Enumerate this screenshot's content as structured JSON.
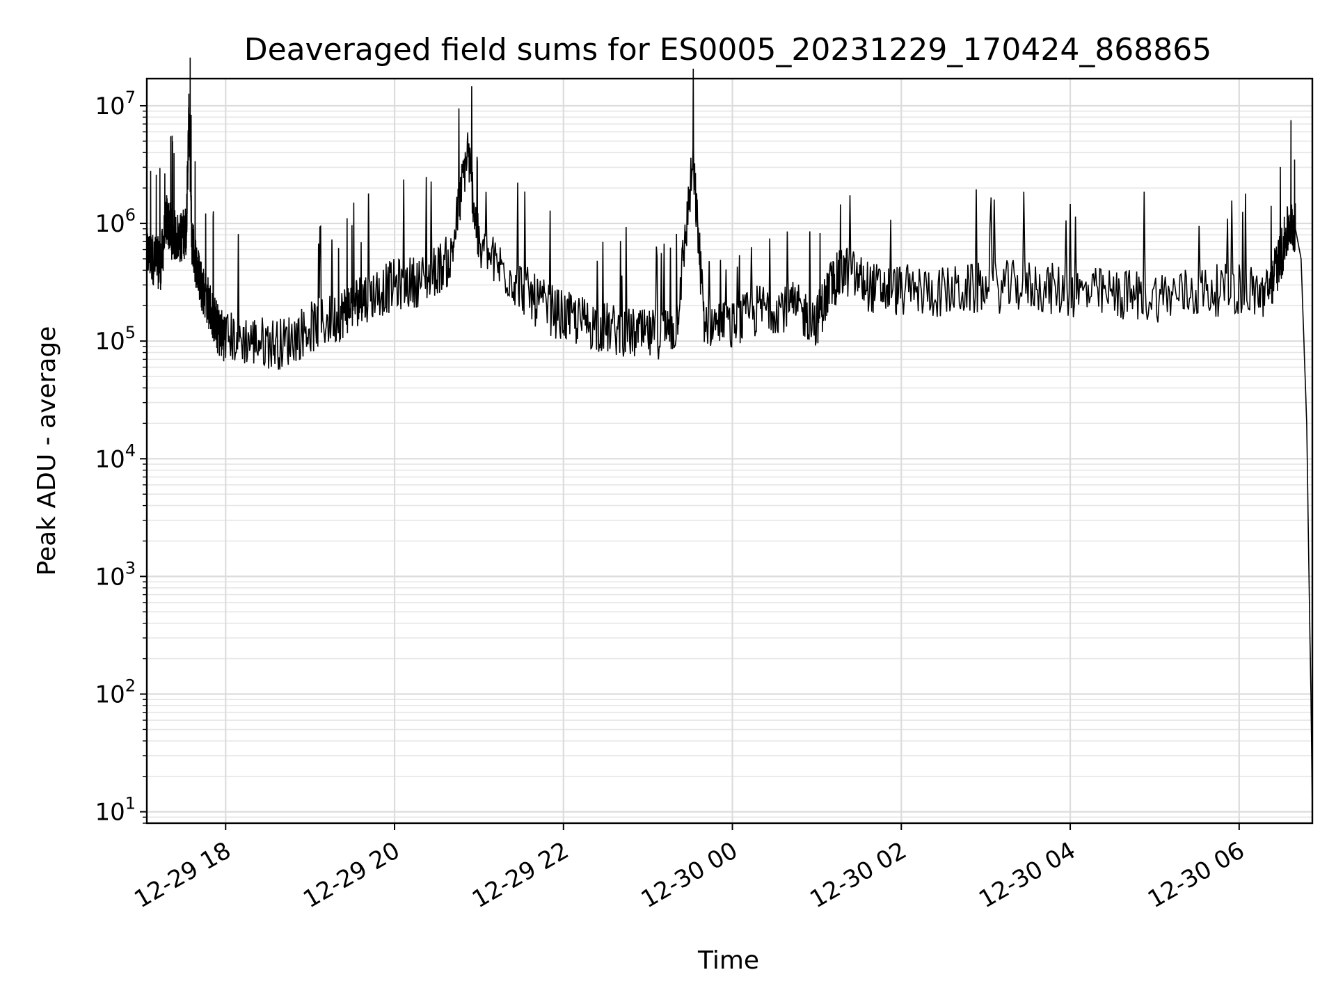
{
  "chart_data": {
    "type": "line",
    "title": "Deaveraged field sums for ES0005_20231229_170424_868865",
    "xlabel": "Time",
    "ylabel": "Peak ADU - average",
    "yscale": "log",
    "ylim": [
      8,
      17000000
    ],
    "xlim": [
      "2023-12-29 17:04",
      "2023-12-30 06:52"
    ],
    "grid": true,
    "line_color": "#000000",
    "x_ticks": [
      {
        "at": "2023-12-29 18:00",
        "label": "12-29 18"
      },
      {
        "at": "2023-12-29 20:00",
        "label": "12-29 20"
      },
      {
        "at": "2023-12-29 22:00",
        "label": "12-29 22"
      },
      {
        "at": "2023-12-30 00:00",
        "label": "12-30 00"
      },
      {
        "at": "2023-12-30 02:00",
        "label": "12-30 02"
      },
      {
        "at": "2023-12-30 04:00",
        "label": "12-30 04"
      },
      {
        "at": "2023-12-30 06:00",
        "label": "12-30 06"
      }
    ],
    "y_ticks": [
      {
        "value": 10,
        "base": "10",
        "exp": "1"
      },
      {
        "value": 100,
        "base": "10",
        "exp": "2"
      },
      {
        "value": 1000,
        "base": "10",
        "exp": "3"
      },
      {
        "value": 10000,
        "base": "10",
        "exp": "4"
      },
      {
        "value": 100000,
        "base": "10",
        "exp": "5"
      },
      {
        "value": 1000000,
        "base": "10",
        "exp": "6"
      },
      {
        "value": 10000000,
        "base": "10",
        "exp": "7"
      }
    ],
    "series": [
      {
        "x": [
          "2023-12-29 17:04",
          "2023-12-29 17:10",
          "2023-12-29 17:14",
          "2023-12-29 17:18",
          "2023-12-29 17:22",
          "2023-12-29 17:28",
          "2023-12-29 17:32",
          "2023-12-29 17:34",
          "2023-12-29 17:36",
          "2023-12-29 17:40",
          "2023-12-29 17:44",
          "2023-12-29 17:50",
          "2023-12-29 17:55",
          "2023-12-29 18:00",
          "2023-12-29 18:20",
          "2023-12-29 18:40",
          "2023-12-29 19:00",
          "2023-12-29 19:20",
          "2023-12-29 19:30",
          "2023-12-29 19:40",
          "2023-12-29 20:00",
          "2023-12-29 20:20",
          "2023-12-29 20:40",
          "2023-12-29 20:52",
          "2023-12-29 21:00",
          "2023-12-29 21:20",
          "2023-12-29 21:40",
          "2023-12-29 22:00",
          "2023-12-29 22:20",
          "2023-12-29 22:40",
          "2023-12-29 23:00",
          "2023-12-29 23:20",
          "2023-12-29 23:32",
          "2023-12-29 23:40",
          "2023-12-30 00:00",
          "2023-12-30 00:20",
          "2023-12-30 00:40",
          "2023-12-30 01:00",
          "2023-12-30 01:10",
          "2023-12-30 01:20",
          "2023-12-30 01:40",
          "2023-12-30 02:00",
          "2023-12-30 02:30",
          "2023-12-30 03:00",
          "2023-12-30 03:30",
          "2023-12-30 04:00",
          "2023-12-30 04:30",
          "2023-12-30 05:00",
          "2023-12-30 05:30",
          "2023-12-30 06:00",
          "2023-12-30 06:20",
          "2023-12-30 06:30",
          "2023-12-30 06:36",
          "2023-12-30 06:40",
          "2023-12-30 06:44",
          "2023-12-30 06:46",
          "2023-12-30 06:48",
          "2023-12-30 06:50",
          "2023-12-30 06:51",
          "2023-12-30 06:52"
        ],
        "values": [
          560000,
          480000,
          450000,
          1100000,
          800000,
          750000,
          880000,
          9000000,
          720000,
          400000,
          280000,
          180000,
          120000,
          110000,
          100000,
          95000,
          130000,
          160000,
          210000,
          240000,
          300000,
          330000,
          500000,
          4300000,
          600000,
          380000,
          220000,
          160000,
          140000,
          120000,
          110000,
          130000,
          3300000,
          150000,
          130000,
          190000,
          200000,
          150000,
          300000,
          400000,
          280000,
          270000,
          260000,
          280000,
          300000,
          260000,
          250000,
          240000,
          260000,
          280000,
          250000,
          550000,
          1000000,
          900000,
          500000,
          100000,
          20000,
          500,
          100,
          10
        ]
      }
    ]
  }
}
